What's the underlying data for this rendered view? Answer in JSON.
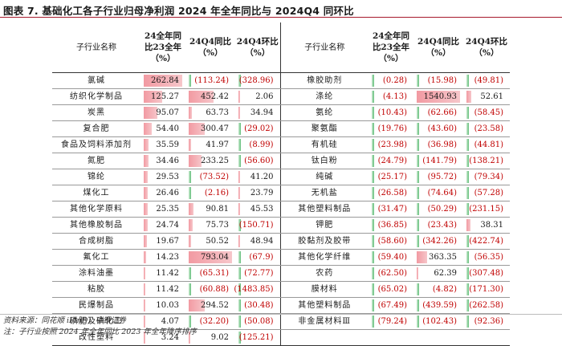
{
  "figure_title": "图表 7. 基础化工各子行业归母净利润 2024 年全年同比与 2024Q4 同环比",
  "headers": {
    "name": "子行业名称",
    "yoy_year": "24全年同比23全年（%）",
    "yoy_q4": "24Q4同比（%）",
    "qoq_q4": "24Q4环比（%）"
  },
  "left_rows": [
    {
      "name": "氯碱",
      "a": "262.84",
      "b": "(113.24)",
      "c": "(328.96)"
    },
    {
      "name": "纺织化学制品",
      "a": "125.27",
      "b": "452.42",
      "c": "2.06"
    },
    {
      "name": "炭黑",
      "a": "95.07",
      "b": "63.73",
      "c": "34.94"
    },
    {
      "name": "复合肥",
      "a": "54.40",
      "b": "300.47",
      "c": "(29.02)"
    },
    {
      "name": "食品及饲料添加剂",
      "a": "35.59",
      "b": "41.97",
      "c": "(8.99)"
    },
    {
      "name": "氮肥",
      "a": "34.46",
      "b": "233.25",
      "c": "(56.60)"
    },
    {
      "name": "锦纶",
      "a": "29.53",
      "b": "(73.52)",
      "c": "41.20"
    },
    {
      "name": "煤化工",
      "a": "26.46",
      "b": "(2.16)",
      "c": "23.79"
    },
    {
      "name": "其他化学原料",
      "a": "25.35",
      "b": "90.81",
      "c": "45.53"
    },
    {
      "name": "其他橡胶制品",
      "a": "24.74",
      "b": "75.73",
      "c": "(150.71)"
    },
    {
      "name": "合成树脂",
      "a": "19.67",
      "b": "50.52",
      "c": "48.94"
    },
    {
      "name": "氟化工",
      "a": "14.23",
      "b": "793.04",
      "c": "(67.9)"
    },
    {
      "name": "涂料油墨",
      "a": "11.42",
      "b": "(65.31)",
      "c": "(72.77)"
    },
    {
      "name": "粘胶",
      "a": "11.42",
      "b": "(60.88)",
      "c": "(1483.85)"
    },
    {
      "name": "民爆制品",
      "a": "10.03",
      "b": "294.52",
      "c": "(30.48)"
    },
    {
      "name": "磷肥及磷化工",
      "a": "4.07",
      "b": "(32.20)",
      "c": "(50.08)"
    },
    {
      "name": "改性塑料",
      "a": "3.24",
      "b": "9.02",
      "c": "(125.21)"
    }
  ],
  "right_rows": [
    {
      "name": "橡胶助剂",
      "a": "(0.28)",
      "b": "(15.98)",
      "c": "(49.81)"
    },
    {
      "name": "涤纶",
      "a": "(4.13)",
      "b": "1540.93",
      "c": "52.61"
    },
    {
      "name": "氨纶",
      "a": "(10.43)",
      "b": "(62.66)",
      "c": "(58.45)"
    },
    {
      "name": "聚氨酯",
      "a": "(19.76)",
      "b": "(43.60)",
      "c": "(23.58)"
    },
    {
      "name": "有机硅",
      "a": "(23.98)",
      "b": "(36.98)",
      "c": "(44.81)"
    },
    {
      "name": "钛白粉",
      "a": "(24.79)",
      "b": "(141.79)",
      "c": "(138.21)"
    },
    {
      "name": "纯碱",
      "a": "(25.17)",
      "b": "(95.72)",
      "c": "(79.34)"
    },
    {
      "name": "无机盐",
      "a": "(26.58)",
      "b": "(74.64)",
      "c": "(57.28)"
    },
    {
      "name": "其他塑料制品",
      "a": "(31.47)",
      "b": "(50.29)",
      "c": "(231.15)"
    },
    {
      "name": "钾肥",
      "a": "(36.85)",
      "b": "(23.43)",
      "c": "38.31"
    },
    {
      "name": "胶黏剂及胶带",
      "a": "(58.60)",
      "b": "(342.26)",
      "c": "(422.74)"
    },
    {
      "name": "其他化学纤维",
      "a": "(59.40)",
      "b": "363.35",
      "c": "(56.35)"
    },
    {
      "name": "农药",
      "a": "(62.50)",
      "b": "62.39",
      "c": "(307.48)"
    },
    {
      "name": "膜材料",
      "a": "(65.02)",
      "b": "(4.82)",
      "c": "(171.30)"
    },
    {
      "name": "其他塑料制品",
      "a": "(67.49)",
      "b": "(439.59)",
      "c": "(262.58)"
    },
    {
      "name": "非金属材料Ⅲ",
      "a": "(79.24)",
      "b": "(102.43)",
      "c": "(92.36)"
    }
  ],
  "notes": {
    "source": "资料来源：同花顺 iFinD，中银证券",
    "note": "注：子行业按照 2024 年全年同比 2023 年全年降序排序"
  },
  "colors": {
    "positive_bar": "#f29aa2",
    "negative_bar": "#63be7b",
    "negative_text": "#c00000",
    "title_rule": "#a7192c"
  }
}
